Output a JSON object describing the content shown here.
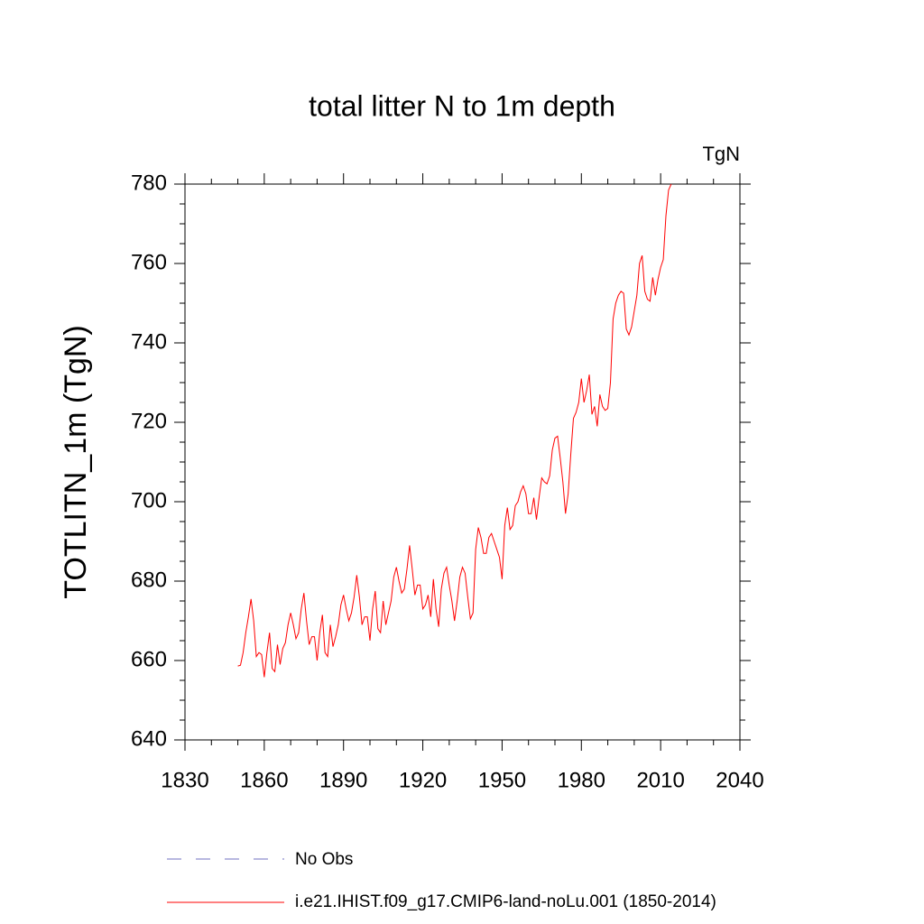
{
  "chart_data": {
    "type": "line",
    "title": "total litter N to 1m depth",
    "units": "TgN",
    "y_label": "TOTLITN_1m  (TgN)",
    "xlim": [
      1830,
      2040
    ],
    "xticks": [
      1830,
      1860,
      1890,
      1920,
      1950,
      1980,
      2010,
      2040
    ],
    "ylim": [
      640,
      780
    ],
    "yticks": [
      640,
      660,
      680,
      700,
      720,
      740,
      760,
      780
    ],
    "x": [
      1850,
      1851,
      1852,
      1853,
      1854,
      1855,
      1856,
      1857,
      1858,
      1859,
      1860,
      1861,
      1862,
      1863,
      1864,
      1865,
      1866,
      1867,
      1868,
      1869,
      1870,
      1871,
      1872,
      1873,
      1874,
      1875,
      1876,
      1877,
      1878,
      1879,
      1880,
      1881,
      1882,
      1883,
      1884,
      1885,
      1886,
      1887,
      1888,
      1889,
      1890,
      1891,
      1892,
      1893,
      1894,
      1895,
      1896,
      1897,
      1898,
      1899,
      1900,
      1901,
      1902,
      1903,
      1904,
      1905,
      1906,
      1907,
      1908,
      1909,
      1910,
      1911,
      1912,
      1913,
      1914,
      1915,
      1916,
      1917,
      1918,
      1919,
      1920,
      1921,
      1922,
      1923,
      1924,
      1925,
      1926,
      1927,
      1928,
      1929,
      1930,
      1931,
      1932,
      1933,
      1934,
      1935,
      1936,
      1937,
      1938,
      1939,
      1940,
      1941,
      1942,
      1943,
      1944,
      1945,
      1946,
      1947,
      1948,
      1949,
      1950,
      1951,
      1952,
      1953,
      1954,
      1955,
      1956,
      1957,
      1958,
      1959,
      1960,
      1961,
      1962,
      1963,
      1964,
      1965,
      1966,
      1967,
      1968,
      1969,
      1970,
      1971,
      1972,
      1973,
      1974,
      1975,
      1976,
      1977,
      1978,
      1979,
      1980,
      1981,
      1982,
      1983,
      1984,
      1985,
      1986,
      1987,
      1988,
      1989,
      1990,
      1991,
      1992,
      1993,
      1994,
      1995,
      1996,
      1997,
      1998,
      1999,
      2000,
      2001,
      2002,
      2003,
      2004,
      2005,
      2006,
      2007,
      2008,
      2009,
      2010,
      2011,
      2012,
      2013,
      2014
    ],
    "series": [
      {
        "name": "i.e21.IHIST.f09_g17.CMIP6-land-noLu.001 (1850-2014)",
        "color": "#ff0000",
        "values": [
          658.6,
          658.8,
          662,
          667,
          671,
          675.5,
          670,
          661,
          662,
          661.5,
          655.8,
          662,
          667,
          658,
          657.2,
          664,
          659,
          663,
          664.5,
          669,
          672,
          669,
          665.5,
          667,
          673,
          677,
          670,
          664,
          666,
          666,
          660,
          667,
          671.5,
          662,
          661,
          669,
          663.5,
          666,
          669,
          674,
          676.5,
          673,
          670,
          672,
          676,
          681.5,
          676,
          669,
          671,
          671,
          665,
          673,
          677.5,
          668,
          667,
          675,
          669,
          672,
          675,
          681,
          683.5,
          680,
          677,
          678,
          683,
          689,
          683,
          676.5,
          679,
          679,
          673,
          674,
          676.5,
          671,
          680.5,
          673,
          668.5,
          678,
          682,
          683.5,
          679,
          675,
          670,
          675,
          681,
          683.5,
          682,
          676,
          670.5,
          672,
          688,
          693.5,
          691,
          687,
          687,
          691,
          692,
          690,
          688,
          686,
          680.5,
          694,
          698.5,
          693,
          694,
          699,
          700,
          702.5,
          704,
          702,
          697,
          697,
          701,
          695.5,
          701,
          706,
          705,
          704.5,
          706.5,
          713,
          716,
          716.5,
          711,
          705,
          697,
          702,
          712,
          721,
          722.5,
          725,
          731,
          725,
          728,
          732,
          722,
          724,
          719,
          727,
          724,
          723,
          723.5,
          730,
          746,
          750,
          752,
          753,
          752.5,
          743.5,
          742,
          744,
          748,
          752,
          760,
          762,
          753,
          751,
          750.5,
          756.5,
          752,
          756,
          759,
          761,
          772,
          778.5,
          780
        ]
      }
    ],
    "obs_legend": {
      "name": "No Obs",
      "color": "#7070c0"
    }
  }
}
